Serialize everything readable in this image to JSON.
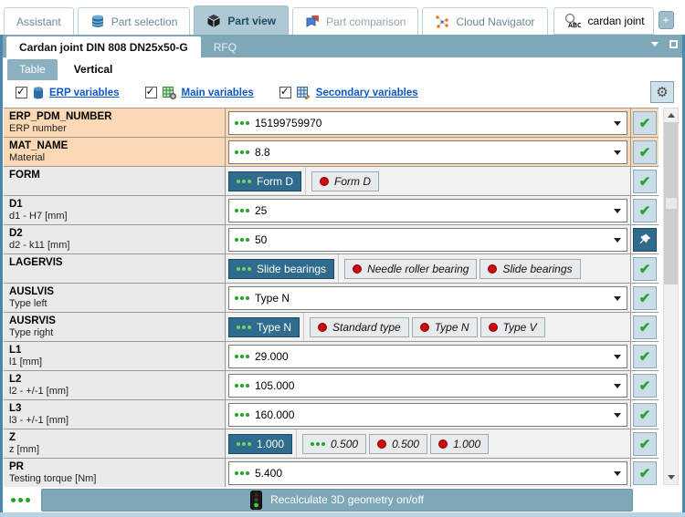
{
  "colors": {
    "accent_selected": "#2f6b8c",
    "erp_row_bg": "#fbd9b5",
    "active_tab_bg": "#aec8d4",
    "bar_bg": "#7ea7b8",
    "check_green": "#28a228",
    "invalid_red": "#cc0a0a",
    "link_blue": "#0a58c8",
    "window_border": "#4d87ae"
  },
  "main_tabs": [
    {
      "label": "Assistant"
    },
    {
      "label": "Part selection"
    },
    {
      "label": "Part view"
    },
    {
      "label": "Part comparison"
    },
    {
      "label": "Cloud Navigator"
    }
  ],
  "search": {
    "value": "cardan joint"
  },
  "add_button_label": "+",
  "document_tabs": {
    "active": "Cardan joint DIN 808 DN25x50-G",
    "secondary": "RFQ"
  },
  "view_tabs": {
    "table": "Table",
    "vertical": "Vertical"
  },
  "filters": [
    {
      "label": "ERP variables",
      "checked": true
    },
    {
      "label": "Main variables",
      "checked": true
    },
    {
      "label": "Secondary variables",
      "checked": true
    }
  ],
  "rows": [
    {
      "name": "ERP_PDM_NUMBER",
      "desc": "ERP number",
      "type": "dropdown",
      "value": "15199759970",
      "status": "check",
      "erp": true
    },
    {
      "name": "MAT_NAME",
      "desc": "Material",
      "type": "dropdown",
      "value": "8.8",
      "status": "check",
      "erp": true
    },
    {
      "name": "FORM",
      "desc": "",
      "type": "options",
      "options": [
        {
          "label": "Form D",
          "state": "selected"
        },
        {
          "label": "Form D",
          "state": "invalid"
        }
      ],
      "status": "check",
      "erp": false
    },
    {
      "name": "D1",
      "desc": "d1 - H7 [mm]",
      "type": "dropdown",
      "value": "25",
      "status": "check",
      "erp": false
    },
    {
      "name": "D2",
      "desc": "d2 - k11 [mm]",
      "type": "dropdown",
      "value": "50",
      "status": "pin",
      "erp": false
    },
    {
      "name": "LAGERVIS",
      "desc": "",
      "type": "options",
      "options": [
        {
          "label": "Slide bearings",
          "state": "selected"
        },
        {
          "label": "Needle roller bearing",
          "state": "invalid"
        },
        {
          "label": "Slide bearings",
          "state": "invalid"
        }
      ],
      "status": "check",
      "erp": false
    },
    {
      "name": "AUSLVIS",
      "desc": "Type left",
      "type": "dropdown",
      "value": "Type N",
      "status": "check",
      "erp": false
    },
    {
      "name": "AUSRVIS",
      "desc": "Type right",
      "type": "options",
      "options": [
        {
          "label": "Type N",
          "state": "selected"
        },
        {
          "label": "Standard type",
          "state": "invalid"
        },
        {
          "label": "Type N",
          "state": "invalid"
        },
        {
          "label": "Type V",
          "state": "invalid"
        }
      ],
      "status": "check",
      "erp": false
    },
    {
      "name": "L1",
      "desc": "l1 [mm]",
      "type": "dropdown",
      "value": "29.000",
      "status": "check",
      "erp": false
    },
    {
      "name": "L2",
      "desc": "l2 - +/-1 [mm]",
      "type": "dropdown",
      "value": "105.000",
      "status": "check",
      "erp": false
    },
    {
      "name": "L3",
      "desc": "l3 - +/-1 [mm]",
      "type": "dropdown",
      "value": "160.000",
      "status": "check",
      "erp": false
    },
    {
      "name": "Z",
      "desc": "z [mm]",
      "type": "options",
      "options": [
        {
          "label": "1.000",
          "state": "selected"
        },
        {
          "label": "0.500",
          "state": "available"
        },
        {
          "label": "0.500",
          "state": "invalid"
        },
        {
          "label": "1.000",
          "state": "invalid"
        }
      ],
      "status": "check",
      "erp": false
    },
    {
      "name": "PR",
      "desc": "Testing torque [Nm]",
      "type": "dropdown",
      "value": "5.400",
      "status": "check",
      "erp": false
    }
  ],
  "footer": {
    "recalculate_label": "Recalculate 3D geometry on/off"
  }
}
